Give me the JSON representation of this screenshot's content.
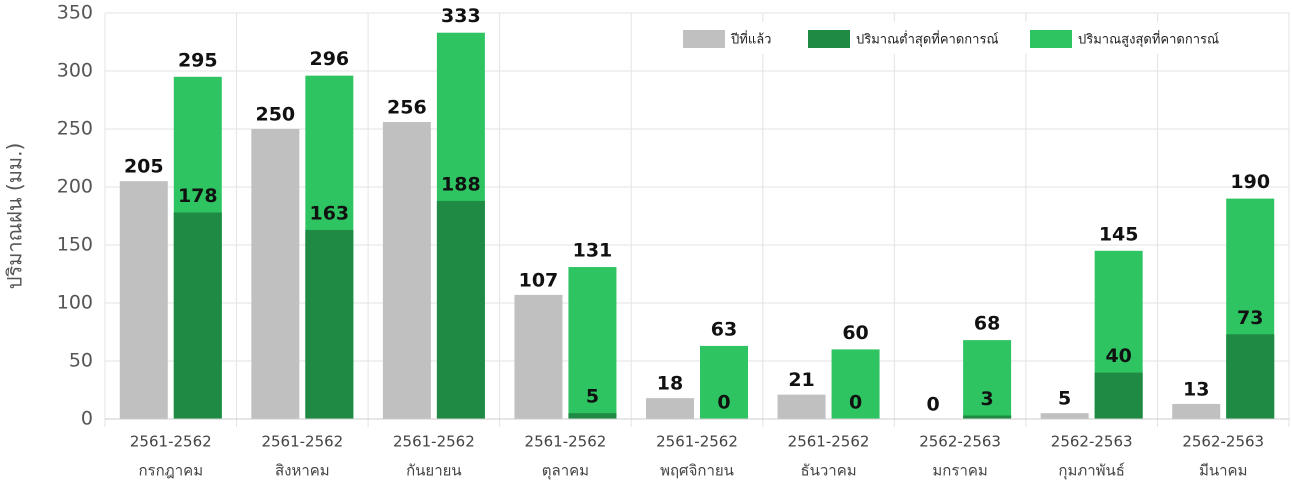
{
  "chart_data": {
    "type": "bar",
    "y_label": "ปริมาณฝน (มม.)",
    "categories": [
      [
        "2561-2562",
        "กรกฎาคม"
      ],
      [
        "2561-2562",
        "สิงหาคม"
      ],
      [
        "2561-2562",
        "กันยายน"
      ],
      [
        "2561-2562",
        "ตุลาคม"
      ],
      [
        "2561-2562",
        "พฤศจิกายน"
      ],
      [
        "2561-2562",
        "ธันวาคม"
      ],
      [
        "2562-2563",
        "มกราคม"
      ],
      [
        "2562-2563",
        "กุมภาพันธ์"
      ],
      [
        "2562-2563",
        "มีนาคม"
      ]
    ],
    "series": [
      {
        "name": "ปีที่แล้ว",
        "color": "#c0c0c0",
        "values": [
          205,
          250,
          256,
          107,
          18,
          21,
          0,
          5,
          13
        ]
      },
      {
        "name": "ปริมาณต่ำสุดที่คาดการณ์",
        "color": "#1e8a43",
        "values": [
          178,
          163,
          188,
          5,
          0,
          0,
          3,
          40,
          73
        ]
      },
      {
        "name": "ปริมาณสูงสุดที่คาดการณ์",
        "color": "#2ec462",
        "values": [
          295,
          296,
          333,
          131,
          63,
          60,
          68,
          145,
          190
        ]
      }
    ],
    "ylim": [
      0,
      350
    ],
    "yticks": [
      0,
      50,
      100,
      150,
      200,
      250,
      300,
      350
    ],
    "grid": true
  }
}
